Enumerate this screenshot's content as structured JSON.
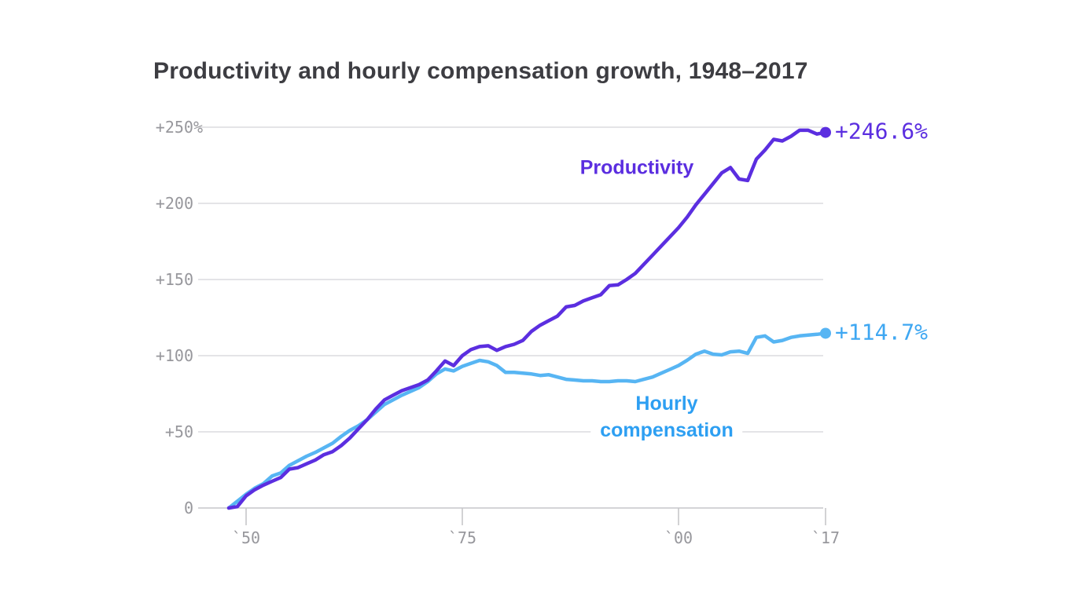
{
  "header": {
    "title": "Productivity and hourly compensation growth, 1948–2017"
  },
  "annotations": {
    "productivity_label": "Productivity",
    "hourly_label_line1": "Hourly",
    "hourly_label_line2": "compensation",
    "productivity_end_value": "+246.6%",
    "hourly_end_value": "+114.7%"
  },
  "colors": {
    "productivity": "#5b2ee0",
    "hourly_line": "#57b5f3",
    "hourly_text": "#2d9ff2",
    "grid": "#dcdcdf",
    "axis": "#c6c6ca",
    "tick_text": "#97979c",
    "title_text": "#3d3d42",
    "background": "#ffffff"
  },
  "chart_data": {
    "type": "line",
    "title": "Productivity and hourly compensation growth, 1948–2017",
    "xlabel": "",
    "ylabel": "",
    "grid": true,
    "legend_position": "inline-annotations",
    "xlim": [
      1948,
      2017
    ],
    "ylim": [
      0,
      250
    ],
    "x": [
      1948,
      1949,
      1950,
      1951,
      1952,
      1953,
      1954,
      1955,
      1956,
      1957,
      1958,
      1959,
      1960,
      1961,
      1962,
      1963,
      1964,
      1965,
      1966,
      1967,
      1968,
      1969,
      1970,
      1971,
      1972,
      1973,
      1974,
      1975,
      1976,
      1977,
      1978,
      1979,
      1980,
      1981,
      1982,
      1983,
      1984,
      1985,
      1986,
      1987,
      1988,
      1989,
      1990,
      1991,
      1992,
      1993,
      1994,
      1995,
      1996,
      1997,
      1998,
      1999,
      2000,
      2001,
      2002,
      2003,
      2004,
      2005,
      2006,
      2007,
      2008,
      2009,
      2010,
      2011,
      2012,
      2013,
      2014,
      2015,
      2016,
      2017
    ],
    "x_ticks": [
      {
        "label": "`50",
        "year": 1950
      },
      {
        "label": "`75",
        "year": 1975
      },
      {
        "label": "`00",
        "year": 2000
      },
      {
        "label": "`17",
        "year": 2017
      }
    ],
    "y_ticks": [
      {
        "label": "+250%",
        "value": 250
      },
      {
        "label": "+200",
        "value": 200
      },
      {
        "label": "+150",
        "value": 150
      },
      {
        "label": "+100",
        "value": 100
      },
      {
        "label": "+50",
        "value": 50
      },
      {
        "label": "0",
        "value": 0
      }
    ],
    "series": [
      {
        "name": "Productivity",
        "color": "#5b2ee0",
        "end_label": "+246.6%",
        "end_value": 246.6,
        "values": [
          0,
          1,
          8,
          12,
          15,
          17.5,
          20,
          25.5,
          26.5,
          29,
          31.5,
          35,
          37,
          41,
          46,
          52,
          58,
          65,
          71,
          74,
          77,
          79,
          81,
          84,
          90,
          96.5,
          93.5,
          100,
          104,
          106,
          106.5,
          103.5,
          106,
          107.5,
          110,
          116,
          120,
          123,
          126,
          132,
          133,
          136,
          138,
          140,
          146,
          146.5,
          150,
          154,
          160,
          166,
          172,
          178,
          184,
          191,
          199,
          206,
          213,
          220,
          223.5,
          216,
          215,
          229,
          235,
          242,
          241,
          244,
          248,
          248,
          245.5,
          246.6
        ]
      },
      {
        "name": "Hourly compensation",
        "color": "#57b5f3",
        "end_label": "+114.7%",
        "end_value": 114.7,
        "values": [
          0,
          4.5,
          9,
          13,
          16,
          21,
          23,
          28,
          31,
          34,
          36.5,
          39.5,
          42.5,
          47,
          51,
          54,
          58,
          63,
          68,
          71,
          74,
          76.5,
          79,
          83,
          88,
          91.3,
          90,
          93,
          95,
          96.9,
          96,
          93.5,
          89,
          89,
          88.5,
          88,
          87,
          87.5,
          86,
          84.5,
          84,
          83.5,
          83.5,
          83,
          83,
          83.5,
          83.5,
          83,
          84.5,
          86,
          88.5,
          91,
          93.5,
          97,
          101,
          103,
          101,
          100.5,
          102.5,
          103,
          101.5,
          112,
          113,
          109,
          110,
          112,
          113,
          113.5,
          114,
          114.7
        ]
      }
    ]
  }
}
